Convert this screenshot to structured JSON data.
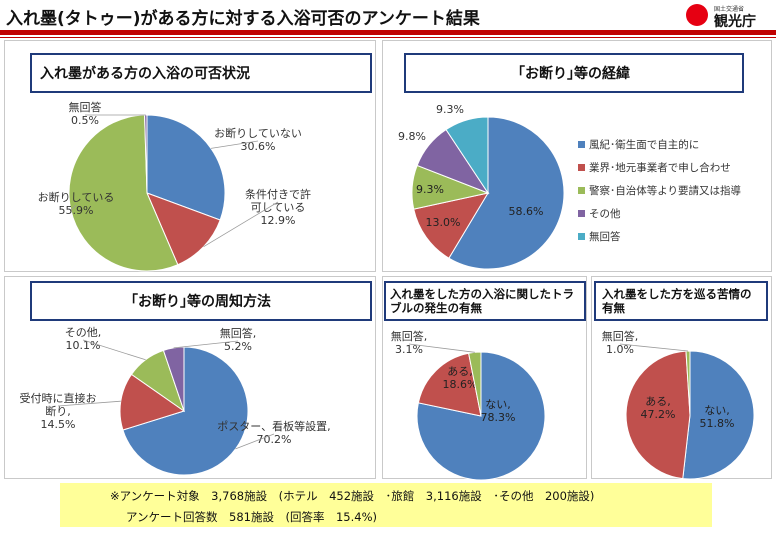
{
  "header": {
    "title": "入れ墨(タトゥー)がある方に対する入浴可否のアンケート結果",
    "logo_small": "国土交通省",
    "logo_main": "観光庁"
  },
  "footer_note": {
    "line1": "※アンケート対象　3,768施設　(ホテル　452施設　･旅館　3,116施設　･その他　200施設)",
    "line2": "アンケート回答数　581施設　(回答率　15.4%)"
  },
  "chart_data": [
    {
      "type": "pie",
      "title": "入れ墨がある方の入浴の可否状況",
      "slices": [
        {
          "label": "お断りしていない",
          "value": 30.6,
          "color": "#4f81bd"
        },
        {
          "label": "条件付きで許可している",
          "value": 12.9,
          "color": "#c0504d"
        },
        {
          "label": "お断りしている",
          "value": 55.9,
          "color": "#9bbb59"
        },
        {
          "label": "無回答",
          "value": 0.5,
          "color": "#8064a2"
        }
      ]
    },
    {
      "type": "pie",
      "title": "｢お断り｣等の経緯",
      "legend": "right",
      "slices": [
        {
          "label": "風紀･衛生面で自主的に",
          "value": 58.6,
          "color": "#4f81bd"
        },
        {
          "label": "業界･地元事業者で申し合わせ",
          "value": 13.0,
          "color": "#c0504d"
        },
        {
          "label": "警察･自治体等より要請又は指導",
          "value": 9.3,
          "color": "#9bbb59"
        },
        {
          "label": "その他",
          "value": 9.8,
          "color": "#8064a2"
        },
        {
          "label": "無回答",
          "value": 9.3,
          "color": "#4bacc6"
        }
      ]
    },
    {
      "type": "pie",
      "title": "｢お断り｣等の周知方法",
      "slices": [
        {
          "label": "ポスター、看板等設置,",
          "value": 70.2,
          "color": "#4f81bd"
        },
        {
          "label": "受付時に直接お断り,",
          "value": 14.5,
          "color": "#c0504d"
        },
        {
          "label": "その他,",
          "value": 10.1,
          "color": "#9bbb59"
        },
        {
          "label": "無回答,",
          "value": 5.2,
          "color": "#8064a2"
        }
      ]
    },
    {
      "type": "pie",
      "title": "入れ墨をした方の入浴に関したトラブルの発生の有無",
      "slices": [
        {
          "label": "ない,",
          "value": 78.3,
          "color": "#4f81bd"
        },
        {
          "label": "ある,",
          "value": 18.6,
          "color": "#c0504d"
        },
        {
          "label": "無回答,",
          "value": 3.1,
          "color": "#9bbb59"
        }
      ]
    },
    {
      "type": "pie",
      "title": "入れ墨をした方を巡る苦情の有無",
      "slices": [
        {
          "label": "ない,",
          "value": 51.8,
          "color": "#4f81bd"
        },
        {
          "label": "ある,",
          "value": 47.2,
          "color": "#c0504d"
        },
        {
          "label": "無回答,",
          "value": 1.0,
          "color": "#9bbb59"
        }
      ]
    }
  ]
}
